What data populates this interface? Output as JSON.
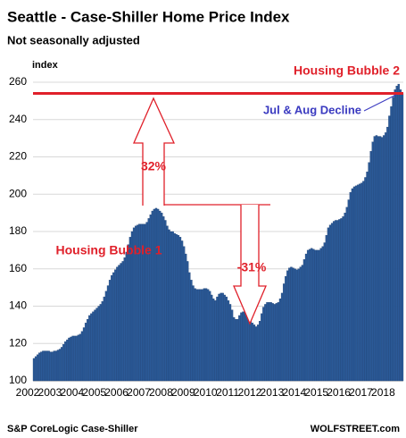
{
  "chart_data": {
    "type": "bar",
    "title": "Seattle - Case-Shiller Home Price Index",
    "subtitle": "Not seasonally adjusted",
    "y_label": "index",
    "source": "S&P CoreLogic Case-Shiller",
    "credit": "WOLFSTREET.com",
    "annotations": [
      "Housing Bubble 2",
      "Jul & Aug Decline",
      "32%",
      "-31%",
      "Housing Bubble 1"
    ],
    "reference_value": 254,
    "color": "#2b5a98",
    "ylim": [
      100,
      260
    ],
    "yticks": [
      100,
      120,
      140,
      160,
      180,
      200,
      220,
      240,
      260
    ],
    "categories": [
      "2002",
      null,
      null,
      null,
      null,
      null,
      null,
      null,
      null,
      null,
      null,
      null,
      "2003",
      null,
      null,
      null,
      null,
      null,
      null,
      null,
      null,
      null,
      null,
      null,
      "2004",
      null,
      null,
      null,
      null,
      null,
      null,
      null,
      null,
      null,
      null,
      null,
      "2005",
      null,
      null,
      null,
      null,
      null,
      null,
      null,
      null,
      null,
      null,
      null,
      "2006",
      null,
      null,
      null,
      null,
      null,
      null,
      null,
      null,
      null,
      null,
      null,
      "2007",
      null,
      null,
      null,
      null,
      null,
      null,
      null,
      null,
      null,
      null,
      null,
      "2008",
      null,
      null,
      null,
      null,
      null,
      null,
      null,
      null,
      null,
      null,
      null,
      "2009",
      null,
      null,
      null,
      null,
      null,
      null,
      null,
      null,
      null,
      null,
      null,
      "2010",
      null,
      null,
      null,
      null,
      null,
      null,
      null,
      null,
      null,
      null,
      null,
      "2011",
      null,
      null,
      null,
      null,
      null,
      null,
      null,
      null,
      null,
      null,
      null,
      "2012",
      null,
      null,
      null,
      null,
      null,
      null,
      null,
      null,
      null,
      null,
      null,
      "2013",
      null,
      null,
      null,
      null,
      null,
      null,
      null,
      null,
      null,
      null,
      null,
      "2014",
      null,
      null,
      null,
      null,
      null,
      null,
      null,
      null,
      null,
      null,
      null,
      "2015",
      null,
      null,
      null,
      null,
      null,
      null,
      null,
      null,
      null,
      null,
      null,
      "2016",
      null,
      null,
      null,
      null,
      null,
      null,
      null,
      null,
      null,
      null,
      null,
      "2017",
      null,
      null,
      null,
      null,
      null,
      null,
      null,
      null,
      null,
      null,
      null,
      "2018",
      null,
      null,
      null,
      null,
      null,
      null,
      null
    ],
    "values": [
      112,
      113,
      114,
      115,
      115.5,
      116,
      116,
      116,
      116,
      115.5,
      115.5,
      116,
      116,
      116.5,
      117,
      118,
      119.5,
      121,
      122,
      123,
      123.5,
      124,
      124,
      124,
      124.5,
      125,
      126.5,
      128.5,
      131,
      133,
      135,
      136,
      137,
      138,
      139,
      140,
      141,
      142.5,
      145,
      148,
      151,
      154,
      156.5,
      158,
      159.5,
      161,
      162,
      163,
      164,
      166,
      169,
      173,
      177,
      180,
      182,
      183,
      183.5,
      184,
      184,
      184,
      184,
      185,
      187,
      189,
      191,
      192,
      192.5,
      192,
      191,
      190,
      188,
      186,
      183,
      181,
      180,
      180,
      179,
      178.5,
      178,
      177,
      175,
      172,
      168,
      164,
      158,
      154,
      151,
      149.5,
      149,
      149,
      149,
      149,
      149.5,
      149.5,
      149,
      148,
      146,
      144,
      143,
      145,
      146.5,
      147,
      147,
      146,
      145,
      143,
      141,
      138,
      134,
      133,
      133,
      135,
      136.5,
      137,
      137,
      136,
      135,
      133,
      131,
      130,
      129,
      130,
      132,
      136,
      139.5,
      141,
      142,
      142,
      142,
      141.5,
      141,
      141.5,
      142,
      144,
      147,
      152,
      156,
      159,
      160.5,
      161,
      160.5,
      160,
      159.5,
      160,
      161,
      162,
      165,
      168,
      170,
      170.5,
      171,
      170.5,
      170,
      170,
      170,
      171,
      172,
      174,
      178,
      182,
      183.5,
      184.5,
      185.5,
      186,
      186,
      186.5,
      187,
      188,
      190,
      193,
      197,
      201,
      203,
      204,
      204.5,
      205,
      205.5,
      206,
      207,
      209,
      212,
      217,
      223,
      228,
      231,
      231.5,
      231,
      231,
      230.5,
      231.5,
      233,
      236,
      242,
      247,
      252,
      256,
      258,
      259,
      256,
      254
    ]
  }
}
